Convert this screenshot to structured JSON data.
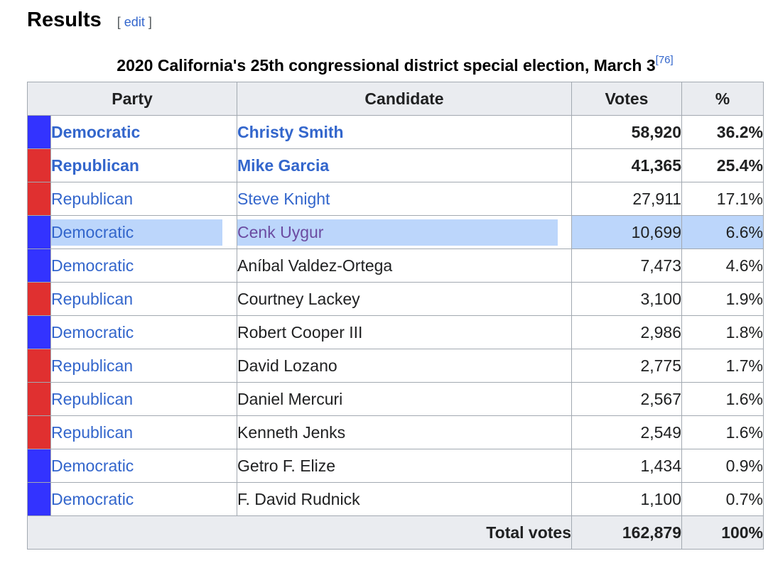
{
  "section": {
    "title": "Results",
    "edit_open": "[",
    "edit_label": "edit",
    "edit_close": "]"
  },
  "caption": {
    "text": "2020 California's 25th congressional district special election, March 3",
    "ref": "[76]"
  },
  "columns": {
    "party": "Party",
    "candidate": "Candidate",
    "votes": "Votes",
    "percent": "%"
  },
  "colors": {
    "democratic": "#3333ff",
    "republican": "#e03030",
    "highlight": "#bcd6fb",
    "link": "#3366cc"
  },
  "rows": [
    {
      "party": "Democratic",
      "candidate": "Christy Smith",
      "votes": "58,920",
      "percent": "36.2%"
    },
    {
      "party": "Republican",
      "candidate": "Mike Garcia",
      "votes": "41,365",
      "percent": "25.4%"
    },
    {
      "party": "Republican",
      "candidate": "Steve Knight",
      "votes": "27,911",
      "percent": "17.1%"
    },
    {
      "party": "Democratic",
      "candidate": "Cenk Uygur",
      "votes": "10,699",
      "percent": "6.6%"
    },
    {
      "party": "Democratic",
      "candidate": "Aníbal Valdez-Ortega",
      "votes": "7,473",
      "percent": "4.6%"
    },
    {
      "party": "Republican",
      "candidate": "Courtney Lackey",
      "votes": "3,100",
      "percent": "1.9%"
    },
    {
      "party": "Democratic",
      "candidate": "Robert Cooper III",
      "votes": "2,986",
      "percent": "1.8%"
    },
    {
      "party": "Republican",
      "candidate": "David Lozano",
      "votes": "2,775",
      "percent": "1.7%"
    },
    {
      "party": "Republican",
      "candidate": "Daniel Mercuri",
      "votes": "2,567",
      "percent": "1.6%"
    },
    {
      "party": "Republican",
      "candidate": "Kenneth Jenks",
      "votes": "2,549",
      "percent": "1.6%"
    },
    {
      "party": "Democratic",
      "candidate": "Getro F. Elize",
      "votes": "1,434",
      "percent": "0.9%"
    },
    {
      "party": "Democratic",
      "candidate": "F. David Rudnick",
      "votes": "1,100",
      "percent": "0.7%"
    }
  ],
  "total": {
    "label": "Total votes",
    "votes": "162,879",
    "percent": "100%"
  }
}
